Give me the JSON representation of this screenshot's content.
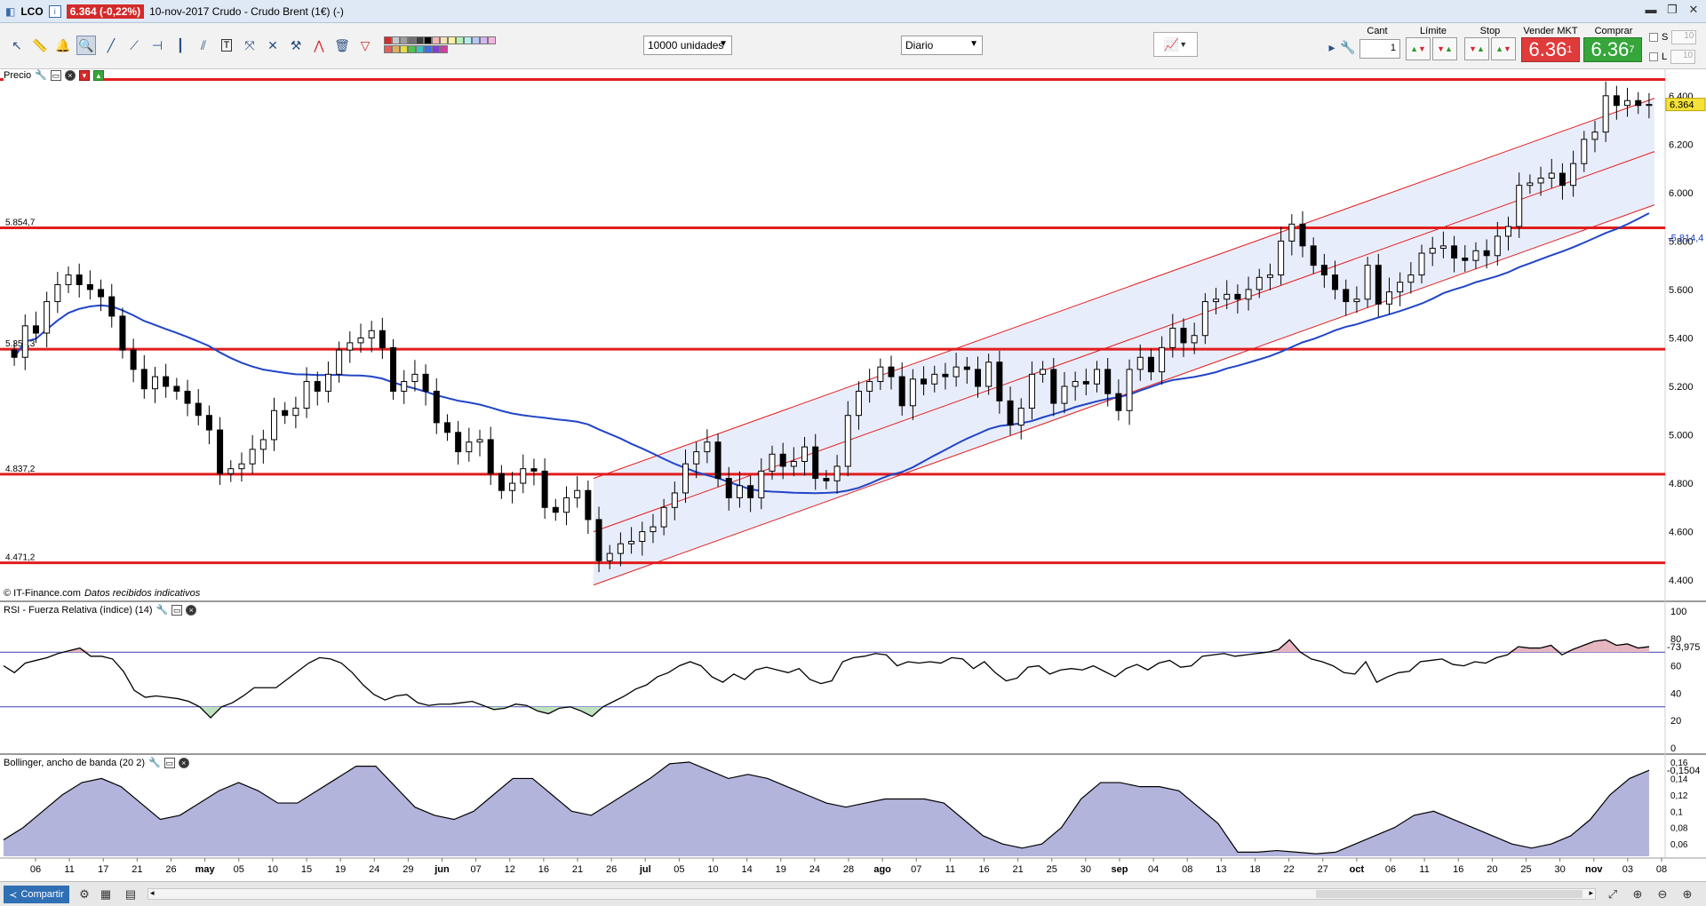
{
  "window": {
    "symbol": "LCO",
    "change_badge": "6.364 (-0,22%)",
    "title": "10-nov-2017 Crudo - Crudo Brent (1€) (-)"
  },
  "toolbar": {
    "units_select": "10000 unidades",
    "period_select": "Diario",
    "qty_header": "Cant",
    "qty_value": "1",
    "limit_header": "Límite",
    "stop_header": "Stop",
    "sell_header": "Vender MKT",
    "buy_header": "Comprar MKT",
    "sell_price_main": "6.36",
    "sell_price_sup": "1",
    "buy_price_main": "6.36",
    "buy_price_sup": "7",
    "s_label": "S",
    "l_label": "L",
    "s_value": "10",
    "l_value": "10"
  },
  "panes": {
    "price_title": "Precio",
    "price_credit": "© IT-Finance.com",
    "price_credit_note": "Datos recibidos indicativos",
    "rsi_title": "RSI - Fuerza Relativa (índice) (14)",
    "bb_title": "Bollinger, ancho de banda (20 2)"
  },
  "statusbar": {
    "share_label": "Compartir"
  },
  "colors": {
    "support_lines": "#e11d1d",
    "moving_average": "#2145c7",
    "channel_fill": "#e8edfb",
    "sell": "#e03b3b",
    "buy": "#36a63a",
    "bb_fill": "#b3b4dc",
    "last_price_marker": "#f4e23a"
  },
  "chart_data": [
    {
      "type": "candlestick",
      "title": "Precio",
      "ylim": [
        4.36,
        6.48
      ],
      "y_ticks": [
        "4.400",
        "4.600",
        "4.800",
        "5.000",
        "5.200",
        "5.400",
        "5.600",
        "5.800",
        "6.000",
        "6.200",
        "6.400"
      ],
      "horizontal_levels": [
        {
          "label": "6.467",
          "value": 6.467
        },
        {
          "label": "5.854,7",
          "value": 5.8547
        },
        {
          "label": "5.353,3",
          "value": 5.3533
        },
        {
          "label": "4.837,2",
          "value": 4.8372
        },
        {
          "label": "4.471,2",
          "value": 4.4712
        }
      ],
      "last_price_label": "6.364",
      "last_price": 6.364,
      "ma_label": "5.814,4",
      "ma_last": 5.8144,
      "x_tick_labels": [
        "06",
        "11",
        "17",
        "21",
        "26",
        "may",
        "05",
        "10",
        "15",
        "19",
        "24",
        "29",
        "jun",
        "07",
        "12",
        "16",
        "21",
        "26",
        "jul",
        "05",
        "10",
        "14",
        "19",
        "24",
        "28",
        "ago",
        "07",
        "11",
        "16",
        "21",
        "25",
        "30",
        "sep",
        "04",
        "08",
        "13",
        "18",
        "22",
        "27",
        "oct",
        "06",
        "11",
        "16",
        "20",
        "25",
        "30",
        "nov",
        "03",
        "08"
      ],
      "closes": [
        5.32,
        5.45,
        5.42,
        5.55,
        5.62,
        5.66,
        5.62,
        5.6,
        5.57,
        5.49,
        5.35,
        5.27,
        5.19,
        5.24,
        5.2,
        5.18,
        5.13,
        5.08,
        5.02,
        4.84,
        4.86,
        4.88,
        4.94,
        4.98,
        5.1,
        5.08,
        5.11,
        5.22,
        5.18,
        5.25,
        5.35,
        5.38,
        5.4,
        5.43,
        5.36,
        5.18,
        5.22,
        5.25,
        5.18,
        5.05,
        5.01,
        4.93,
        4.97,
        4.98,
        4.84,
        4.77,
        4.8,
        4.86,
        4.85,
        4.7,
        4.68,
        4.74,
        4.77,
        4.65,
        4.48,
        4.51,
        4.55,
        4.56,
        4.6,
        4.62,
        4.7,
        4.76,
        4.88,
        4.93,
        4.97,
        4.82,
        4.74,
        4.79,
        4.74,
        4.85,
        4.92,
        4.87,
        4.89,
        4.95,
        4.82,
        4.81,
        4.87,
        5.08,
        5.18,
        5.22,
        5.28,
        5.24,
        5.12,
        5.23,
        5.21,
        5.25,
        5.24,
        5.28,
        5.27,
        5.2,
        5.3,
        5.14,
        5.04,
        5.11,
        5.25,
        5.27,
        5.13,
        5.2,
        5.22,
        5.21,
        5.27,
        5.17,
        5.1,
        5.27,
        5.32,
        5.26,
        5.36,
        5.44,
        5.38,
        5.41,
        5.55,
        5.56,
        5.58,
        5.56,
        5.6,
        5.65,
        5.66,
        5.8,
        5.87,
        5.78,
        5.7,
        5.66,
        5.6,
        5.55,
        5.56,
        5.7,
        5.54,
        5.59,
        5.63,
        5.66,
        5.75,
        5.77,
        5.78,
        5.73,
        5.72,
        5.76,
        5.74,
        5.82,
        5.86,
        6.03,
        6.04,
        6.06,
        6.08,
        6.03,
        6.12,
        6.22,
        6.25,
        6.4,
        6.36,
        6.38,
        6.36,
        6.364
      ]
    },
    {
      "type": "line",
      "title": "RSI - Fuerza Relativa (índice) (14)",
      "ylim": [
        0,
        100
      ],
      "y_ticks": [
        "0",
        "20",
        "40",
        "60",
        "80",
        "100"
      ],
      "bands": [
        30,
        70
      ],
      "last_label": "73,975",
      "values": [
        60,
        55,
        62,
        64,
        66,
        69,
        71,
        73,
        67,
        67,
        65,
        56,
        42,
        37,
        38,
        37,
        36,
        34,
        30,
        22,
        30,
        33,
        38,
        44,
        44,
        44,
        50,
        56,
        62,
        66,
        65,
        62,
        55,
        46,
        39,
        35,
        38,
        39,
        33,
        31,
        32,
        32,
        33,
        34,
        31,
        28,
        29,
        32,
        31,
        27,
        25,
        29,
        30,
        27,
        23,
        30,
        34,
        38,
        43,
        46,
        52,
        55,
        60,
        63,
        60,
        52,
        48,
        54,
        50,
        57,
        59,
        57,
        55,
        58,
        50,
        47,
        49,
        63,
        66,
        67,
        69,
        68,
        60,
        63,
        62,
        63,
        62,
        66,
        65,
        58,
        63,
        55,
        49,
        51,
        59,
        60,
        54,
        57,
        58,
        57,
        60,
        56,
        52,
        58,
        61,
        57,
        62,
        64,
        59,
        60,
        67,
        68,
        69,
        67,
        68,
        69,
        70,
        72,
        79,
        70,
        65,
        63,
        60,
        55,
        54,
        63,
        48,
        52,
        55,
        56,
        63,
        64,
        65,
        61,
        60,
        63,
        62,
        66,
        68,
        74,
        73,
        73,
        75,
        68,
        72,
        75,
        78,
        79,
        75,
        76,
        73,
        73.975
      ]
    },
    {
      "type": "area",
      "title": "Bollinger, ancho de banda (20 2)",
      "ylim": [
        0.045,
        0.16
      ],
      "y_ticks": [
        "0,06",
        "0,08",
        "0,1",
        "0,12",
        "0,14",
        "0,16"
      ],
      "last_label": "0,1504",
      "values": [
        0.065,
        0.08,
        0.1,
        0.12,
        0.135,
        0.14,
        0.13,
        0.11,
        0.09,
        0.095,
        0.11,
        0.125,
        0.135,
        0.125,
        0.11,
        0.11,
        0.125,
        0.14,
        0.155,
        0.155,
        0.13,
        0.105,
        0.095,
        0.09,
        0.1,
        0.12,
        0.14,
        0.14,
        0.12,
        0.1,
        0.095,
        0.11,
        0.125,
        0.14,
        0.158,
        0.16,
        0.15,
        0.14,
        0.145,
        0.14,
        0.13,
        0.12,
        0.11,
        0.105,
        0.11,
        0.115,
        0.115,
        0.115,
        0.11,
        0.09,
        0.07,
        0.06,
        0.055,
        0.06,
        0.08,
        0.115,
        0.135,
        0.135,
        0.13,
        0.13,
        0.125,
        0.105,
        0.085,
        0.05,
        0.05,
        0.052,
        0.05,
        0.048,
        0.05,
        0.06,
        0.07,
        0.08,
        0.095,
        0.1,
        0.09,
        0.08,
        0.07,
        0.06,
        0.055,
        0.06,
        0.07,
        0.09,
        0.12,
        0.14,
        0.15
      ]
    }
  ]
}
